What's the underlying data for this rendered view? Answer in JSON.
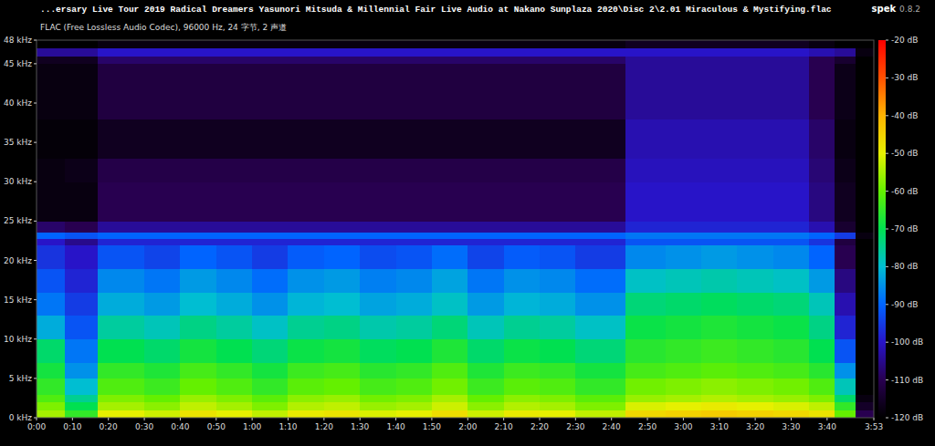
{
  "chart_data": {
    "type": "heatmap",
    "title": "...ersary Live Tour 2019 Radical Dreamers Yasunori Mitsuda & Millennial Fair Live Audio at Nakano Sunplaza 2020\\Disc 2\\2.01 Miraculous & Mystifying.flac",
    "subtitle": "FLAC (Free Lossless Audio Codec), 96000 Hz, 24 字节, 2 声道",
    "annotations": [
      "spek",
      "0.8.2"
    ],
    "xlim": [
      0,
      233
    ],
    "ylim": [
      0,
      48
    ],
    "xticks": [
      {
        "value": 0,
        "label": "0:00"
      },
      {
        "value": 10,
        "label": "0:10"
      },
      {
        "value": 20,
        "label": "0:20"
      },
      {
        "value": 30,
        "label": "0:30"
      },
      {
        "value": 40,
        "label": "0:40"
      },
      {
        "value": 50,
        "label": "0:50"
      },
      {
        "value": 60,
        "label": "1:00"
      },
      {
        "value": 70,
        "label": "1:10"
      },
      {
        "value": 80,
        "label": "1:20"
      },
      {
        "value": 90,
        "label": "1:30"
      },
      {
        "value": 100,
        "label": "1:40"
      },
      {
        "value": 110,
        "label": "1:50"
      },
      {
        "value": 120,
        "label": "2:00"
      },
      {
        "value": 130,
        "label": "2:10"
      },
      {
        "value": 140,
        "label": "2:20"
      },
      {
        "value": 150,
        "label": "2:30"
      },
      {
        "value": 160,
        "label": "2:40"
      },
      {
        "value": 170,
        "label": "2:50"
      },
      {
        "value": 180,
        "label": "3:00"
      },
      {
        "value": 190,
        "label": "3:10"
      },
      {
        "value": 200,
        "label": "3:20"
      },
      {
        "value": 210,
        "label": "3:30"
      },
      {
        "value": 220,
        "label": "3:40"
      },
      {
        "value": 233,
        "label": "3:53"
      }
    ],
    "yticks": [
      {
        "value": 0,
        "label": "0 kHz"
      },
      {
        "value": 5,
        "label": "5 kHz"
      },
      {
        "value": 10,
        "label": "10 kHz"
      },
      {
        "value": 15,
        "label": "15 kHz"
      },
      {
        "value": 20,
        "label": "20 kHz"
      },
      {
        "value": 25,
        "label": "25 kHz"
      },
      {
        "value": 30,
        "label": "30 kHz"
      },
      {
        "value": 35,
        "label": "35 kHz"
      },
      {
        "value": 40,
        "label": "40 kHz"
      },
      {
        "value": 45,
        "label": "45 kHz"
      },
      {
        "value": 48,
        "label": "48 kHz"
      }
    ],
    "x_bins": [
      0,
      8,
      17,
      30,
      40,
      50,
      60,
      70,
      80,
      90,
      100,
      110,
      120,
      130,
      140,
      150,
      164,
      175,
      185,
      195,
      205,
      215,
      222,
      228,
      233
    ],
    "y_bins": [
      0,
      1,
      2,
      3,
      5,
      7,
      10,
      13,
      16,
      19,
      22,
      22.8,
      23.6,
      25,
      30,
      33,
      38,
      45,
      46,
      47,
      48
    ],
    "cells": [
      [
        -55,
        -65,
        -50,
        -52,
        -48,
        -50,
        -53,
        -49,
        -48,
        -51,
        -50,
        -47,
        -52,
        -49,
        -50,
        -53,
        -46,
        -45,
        -44,
        -45,
        -46,
        -48,
        -60,
        -110
      ],
      [
        -58,
        -70,
        -55,
        -57,
        -53,
        -55,
        -58,
        -54,
        -53,
        -56,
        -55,
        -52,
        -57,
        -54,
        -55,
        -58,
        -51,
        -50,
        -49,
        -50,
        -51,
        -53,
        -65,
        -115
      ],
      [
        -62,
        -75,
        -58,
        -60,
        -56,
        -58,
        -61,
        -57,
        -56,
        -59,
        -58,
        -55,
        -60,
        -57,
        -58,
        -61,
        -56,
        -55,
        -54,
        -55,
        -56,
        -58,
        -72,
        -118
      ],
      [
        -65,
        -80,
        -62,
        -64,
        -60,
        -62,
        -65,
        -61,
        -60,
        -63,
        -62,
        -59,
        -64,
        -61,
        -62,
        -65,
        -59,
        -58,
        -57,
        -58,
        -59,
        -62,
        -78,
        -120
      ],
      [
        -68,
        -85,
        -65,
        -67,
        -63,
        -65,
        -68,
        -64,
        -63,
        -66,
        -65,
        -62,
        -67,
        -64,
        -65,
        -68,
        -63,
        -62,
        -61,
        -62,
        -63,
        -66,
        -85,
        -120
      ],
      [
        -72,
        -88,
        -70,
        -72,
        -68,
        -70,
        -73,
        -69,
        -68,
        -71,
        -70,
        -67,
        -72,
        -69,
        -70,
        -73,
        -66,
        -65,
        -64,
        -65,
        -66,
        -70,
        -92,
        -120
      ],
      [
        -82,
        -92,
        -76,
        -78,
        -74,
        -76,
        -79,
        -75,
        -74,
        -77,
        -76,
        -73,
        -78,
        -75,
        -76,
        -79,
        -69,
        -68,
        -67,
        -68,
        -69,
        -74,
        -98,
        -120
      ],
      [
        -88,
        -95,
        -82,
        -84,
        -80,
        -82,
        -85,
        -81,
        -80,
        -83,
        -82,
        -79,
        -84,
        -81,
        -82,
        -85,
        -73,
        -72,
        -71,
        -72,
        -73,
        -78,
        -102,
        -120
      ],
      [
        -92,
        -98,
        -86,
        -88,
        -84,
        -86,
        -89,
        -85,
        -84,
        -87,
        -86,
        -83,
        -88,
        -85,
        -86,
        -89,
        -79,
        -78,
        -77,
        -78,
        -79,
        -84,
        -106,
        -120
      ],
      [
        -96,
        -100,
        -92,
        -94,
        -90,
        -92,
        -95,
        -91,
        -90,
        -93,
        -92,
        -89,
        -94,
        -91,
        -92,
        -95,
        -86,
        -85,
        -84,
        -85,
        -86,
        -90,
        -110,
        -120
      ],
      [
        -100,
        -105,
        -98,
        -98,
        -98,
        -98,
        -98,
        -98,
        -98,
        -98,
        -98,
        -98,
        -98,
        -98,
        -98,
        -98,
        -92,
        -92,
        -92,
        -92,
        -92,
        -96,
        -112,
        -120
      ],
      [
        -90,
        -92,
        -90,
        -90,
        -90,
        -90,
        -90,
        -90,
        -90,
        -90,
        -90,
        -90,
        -90,
        -90,
        -90,
        -90,
        -88,
        -88,
        -88,
        -88,
        -88,
        -90,
        -95,
        -118
      ],
      [
        -108,
        -110,
        -104,
        -104,
        -104,
        -104,
        -104,
        -104,
        -104,
        -104,
        -104,
        -104,
        -104,
        -104,
        -104,
        -104,
        -98,
        -98,
        -98,
        -98,
        -98,
        -102,
        -114,
        -120
      ],
      [
        -118,
        -118,
        -110,
        -110,
        -110,
        -110,
        -110,
        -110,
        -110,
        -110,
        -110,
        -110,
        -110,
        -110,
        -110,
        -110,
        -100,
        -100,
        -100,
        -100,
        -100,
        -106,
        -116,
        -120
      ],
      [
        -118,
        -117,
        -111,
        -111,
        -111,
        -111,
        -111,
        -111,
        -111,
        -111,
        -111,
        -111,
        -111,
        -111,
        -111,
        -111,
        -101,
        -101,
        -101,
        -101,
        -101,
        -107,
        -117,
        -120
      ],
      [
        -119,
        -119,
        -116,
        -116,
        -116,
        -116,
        -116,
        -116,
        -116,
        -116,
        -116,
        -116,
        -116,
        -116,
        -116,
        -116,
        -102,
        -102,
        -102,
        -102,
        -102,
        -108,
        -118,
        -120
      ],
      [
        -118,
        -118,
        -112,
        -112,
        -112,
        -112,
        -112,
        -112,
        -112,
        -112,
        -112,
        -112,
        -112,
        -112,
        -112,
        -112,
        -104,
        -104,
        -104,
        -104,
        -104,
        -110,
        -117,
        -120
      ],
      [
        -116,
        -116,
        -108,
        -108,
        -108,
        -108,
        -108,
        -108,
        -108,
        -108,
        -108,
        -108,
        -108,
        -108,
        -108,
        -108,
        -104,
        -104,
        -104,
        -104,
        -104,
        -110,
        -114,
        -120
      ],
      [
        -104,
        -104,
        -100,
        -100,
        -100,
        -100,
        -100,
        -100,
        -100,
        -100,
        -100,
        -100,
        -100,
        -100,
        -100,
        -100,
        -100,
        -100,
        -100,
        -100,
        -100,
        -102,
        -104,
        -118
      ],
      [
        -120,
        -120,
        -118,
        -118,
        -118,
        -118,
        -118,
        -118,
        -118,
        -118,
        -118,
        -118,
        -118,
        -118,
        -118,
        -118,
        -116,
        -116,
        -116,
        -116,
        -116,
        -118,
        -120,
        -120
      ]
    ],
    "colorbar_range": [
      -120,
      -20
    ],
    "colorbar_ticks": [
      {
        "value": -20,
        "label": "-20 dB"
      },
      {
        "value": -30,
        "label": "-30 dB"
      },
      {
        "value": -40,
        "label": "-40 dB"
      },
      {
        "value": -50,
        "label": "-50 dB"
      },
      {
        "value": -60,
        "label": "-60 dB"
      },
      {
        "value": -70,
        "label": "-70 dB"
      },
      {
        "value": -80,
        "label": "-80 dB"
      },
      {
        "value": -90,
        "label": "-90 dB"
      },
      {
        "value": -100,
        "label": "-100 dB"
      },
      {
        "value": -110,
        "label": "-110 dB"
      },
      {
        "value": -120,
        "label": "-120 dB"
      }
    ]
  }
}
